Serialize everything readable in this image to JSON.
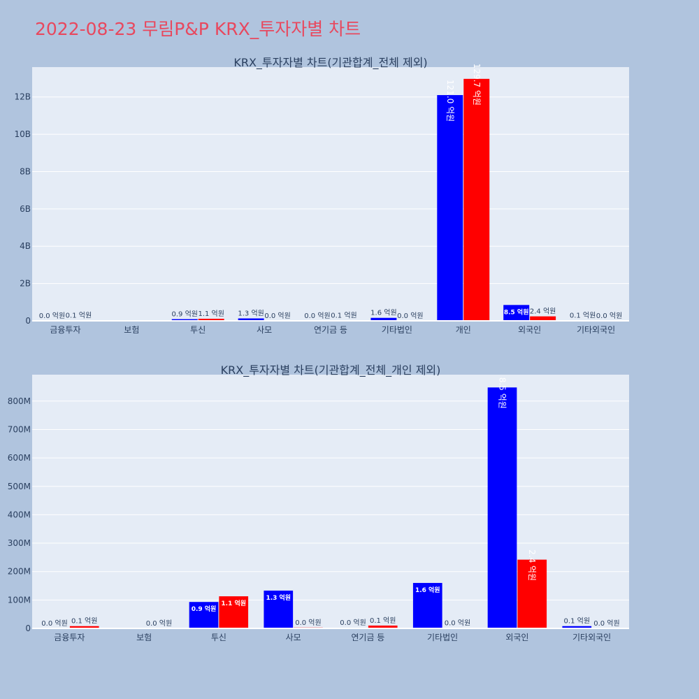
{
  "title": "2022-08-23 무림P&P KRX_투자자별 차트",
  "chart_data": [
    {
      "type": "bar",
      "title": "KRX_투자자별 차트(기관합계_전체 제외)",
      "categories": [
        "금융투자",
        "보험",
        "투신",
        "사모",
        "연기금 등",
        "기타법인",
        "개인",
        "외국인",
        "기타외국인"
      ],
      "series": [
        {
          "color": "#0000ff",
          "values": [
            0,
            0,
            90000000,
            130000000,
            0,
            160000000,
            12100000000,
            850000000,
            10000000
          ],
          "labels": [
            "0.0 억원",
            "",
            "0.9 억원",
            "1.3 억원",
            "0.0 억원",
            "1.6 억원",
            "121.0 억원",
            "8.5 억원",
            "0.1 억원"
          ]
        },
        {
          "color": "#ff0000",
          "values": [
            10000000,
            0,
            110000000,
            0,
            10000000,
            0,
            12970000000,
            240000000,
            0
          ],
          "labels": [
            "0.1 억원",
            "",
            "1.1 억원",
            "0.0 억원",
            "0.1 억원",
            "0.0 억원",
            "129.7 억원",
            "2.4 억원",
            "0.0 억원"
          ]
        }
      ],
      "yticks": [
        0,
        2000000000,
        4000000000,
        6000000000,
        8000000000,
        10000000000,
        12000000000
      ],
      "ytick_labels": [
        "0",
        "2B",
        "4B",
        "6B",
        "8B",
        "10B",
        "12B"
      ],
      "ylim": [
        0,
        13600000000
      ]
    },
    {
      "type": "bar",
      "title": "KRX_투자자별 차트(기관합계_전체_개인 제외)",
      "categories": [
        "금융투자",
        "보험",
        "투신",
        "사모",
        "연기금 등",
        "기타법인",
        "외국인",
        "기타외국인"
      ],
      "series": [
        {
          "color": "#0000ff",
          "values": [
            0,
            0,
            93000000,
            133000000,
            2000000,
            160000000,
            848000000,
            8000000
          ],
          "labels": [
            "0.0 억원",
            "",
            "0.9 억원",
            "1.3 억원",
            "0.0 억원",
            "1.6 억원",
            "8.5 억원",
            "0.1 억원"
          ]
        },
        {
          "color": "#ff0000",
          "values": [
            8000000,
            0,
            113000000,
            3000000,
            10000000,
            1000000,
            242000000,
            0
          ],
          "labels": [
            "0.1 억원",
            "0.0 억원",
            "1.1 억원",
            "0.0 억원",
            "0.1 억원",
            "0.0 억원",
            "2.4 억원",
            "0.0 억원"
          ]
        }
      ],
      "yticks": [
        0,
        100000000,
        200000000,
        300000000,
        400000000,
        500000000,
        600000000,
        700000000,
        800000000
      ],
      "ytick_labels": [
        "0",
        "100M",
        "200M",
        "300M",
        "400M",
        "500M",
        "600M",
        "700M",
        "800M"
      ],
      "ylim": [
        0,
        893000000
      ]
    }
  ]
}
